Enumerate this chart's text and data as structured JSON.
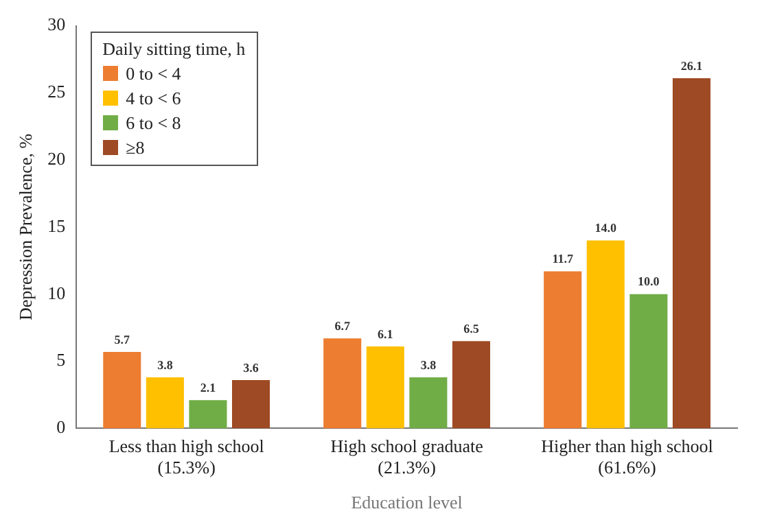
{
  "chart_data": {
    "type": "bar",
    "xlabel": "Education level",
    "ylabel": "Depression Prevalence, %",
    "legend_title": "Daily sitting time, h",
    "legend": "top left",
    "categories": [
      "Less than high school\n(15.3%)",
      "High school graduate\n(21.3%)",
      "Higher than high school\n(61.6%)"
    ],
    "series": [
      {
        "name": "0 to < 4",
        "color": "#ed7d31",
        "values": [
          5.7,
          6.7,
          11.7
        ],
        "value_labels": [
          "5.7",
          "6.7",
          "11.7"
        ]
      },
      {
        "name": "4 to < 6",
        "color": "#ffc000",
        "values": [
          3.8,
          6.1,
          14.0
        ],
        "value_labels": [
          "3.8",
          "6.1",
          "14.0"
        ]
      },
      {
        "name": "6 to < 8",
        "color": "#70ad47",
        "values": [
          2.1,
          3.8,
          10.0
        ],
        "value_labels": [
          "2.1",
          "3.8",
          "10.0"
        ]
      },
      {
        "name": "≥8",
        "color": "#9e4a24",
        "values": [
          3.6,
          6.5,
          26.1
        ],
        "value_labels": [
          "3.6",
          "6.5",
          "26.1"
        ]
      }
    ],
    "ylim": [
      0,
      30
    ],
    "yticks": [
      0,
      5,
      10,
      15,
      20,
      25,
      30
    ],
    "grid": false
  }
}
